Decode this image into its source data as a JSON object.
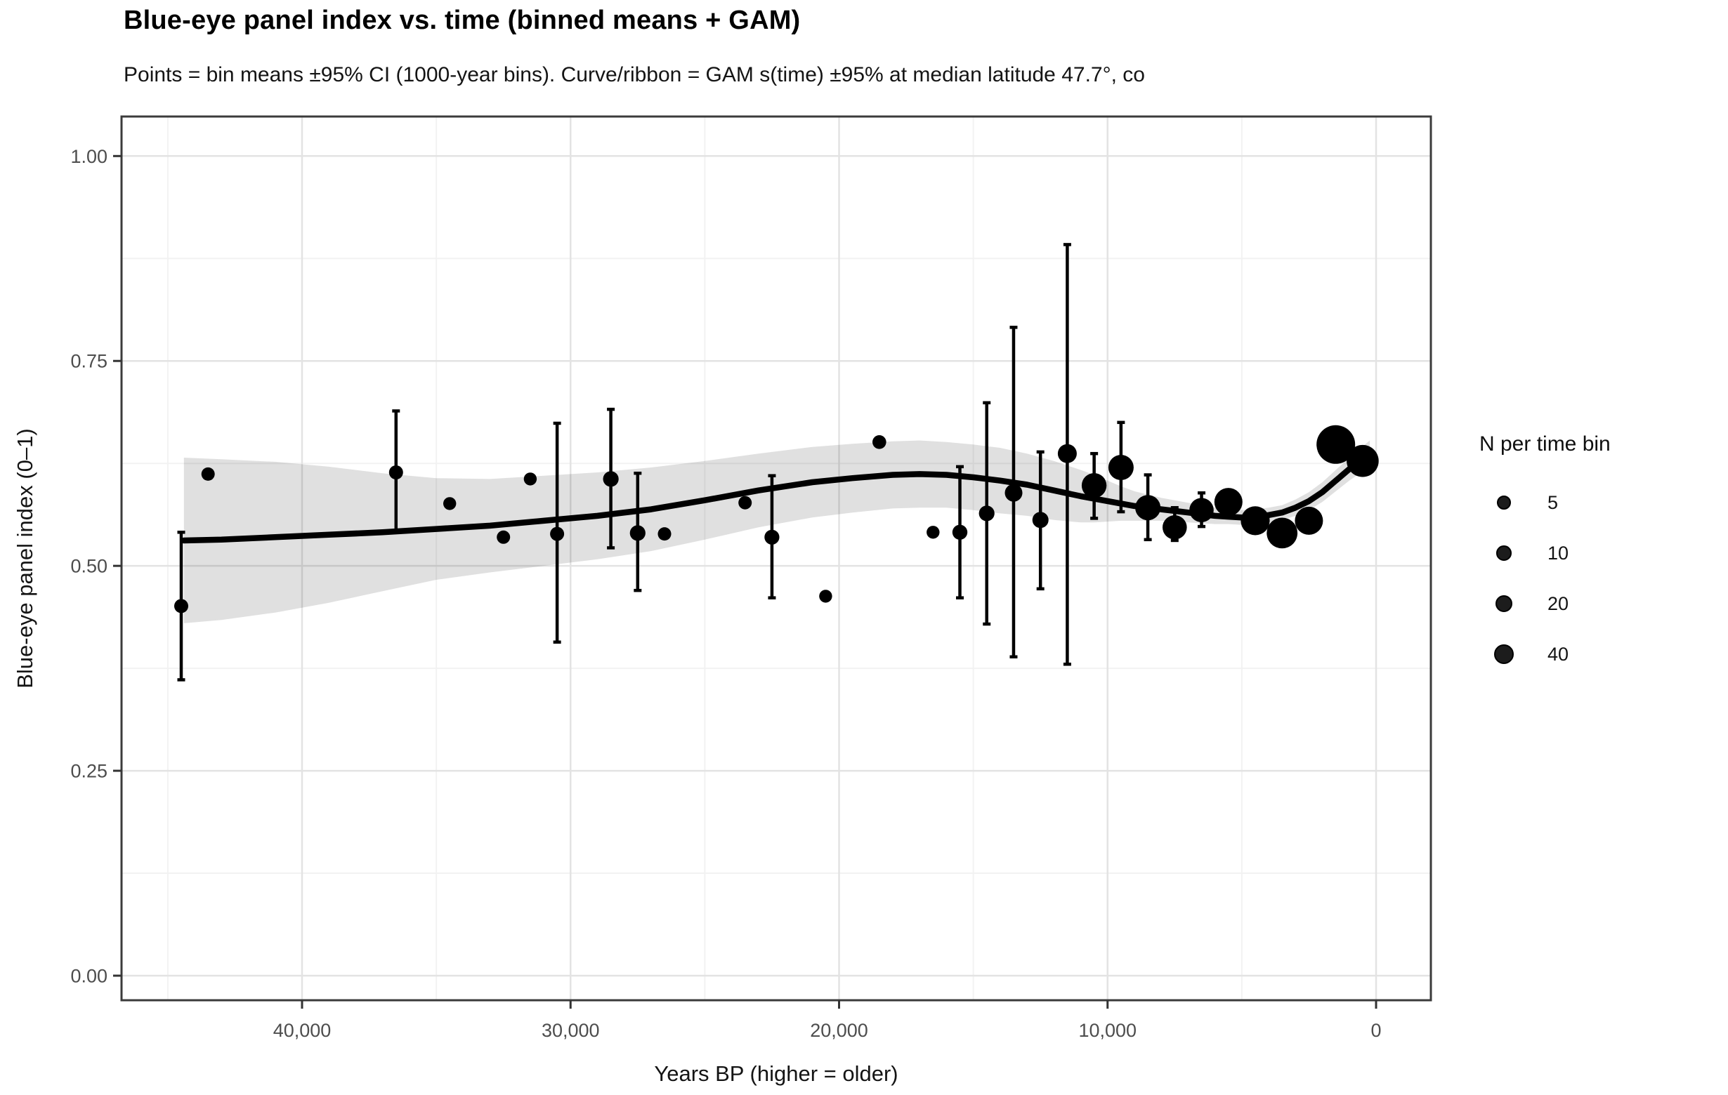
{
  "header": {
    "title": "Blue-eye panel index vs. time (binned means + GAM)",
    "subtitle": "Points = bin means ±95% CI (1000-year bins). Curve/ribbon = GAM s(time) ±95% at median latitude 47.7°, co"
  },
  "axes": {
    "x": {
      "title": "Years BP (higher = older)",
      "reversed": true,
      "major_ticks": [
        {
          "value": 40000,
          "label": "40,000"
        },
        {
          "value": 30000,
          "label": "30,000"
        },
        {
          "value": 20000,
          "label": "20,000"
        },
        {
          "value": 10000,
          "label": "10,000"
        },
        {
          "value": 0,
          "label": "0"
        }
      ],
      "minor_gridlines": [
        45000,
        35000,
        25000,
        15000,
        5000
      ]
    },
    "y": {
      "title": "Blue-eye panel index (0–1)",
      "major_ticks": [
        {
          "value": 1.0,
          "label": "1.00"
        },
        {
          "value": 0.75,
          "label": "0.75"
        },
        {
          "value": 0.5,
          "label": "0.50"
        },
        {
          "value": 0.25,
          "label": "0.25"
        },
        {
          "value": 0.0,
          "label": "0.00"
        }
      ],
      "minor_gridlines": [
        0.875,
        0.625,
        0.375,
        0.125
      ]
    }
  },
  "legend": {
    "title": "N per time bin",
    "items": [
      {
        "n": 5,
        "label": "5"
      },
      {
        "n": 10,
        "label": "10"
      },
      {
        "n": 20,
        "label": "20"
      },
      {
        "n": 40,
        "label": "40"
      }
    ],
    "size_scale": {
      "radius_intercept_px": 7.81,
      "radius_per_sqrt_n_px": 0.978
    }
  },
  "colors": {
    "point": "#000000",
    "error_bar": "#000000",
    "gam_curve": "#000000",
    "ribbon_fill": "#000000",
    "ribbon_opacity": 0.12,
    "grid_major": "#e3e3e3",
    "grid_minor": "#f2f2f2",
    "panel_border": "#3b3b3b",
    "axis_tick": "#333333",
    "axis_text": "#4d4d4d",
    "text": "#141414",
    "background": "#ffffff"
  },
  "chart_data": {
    "type": "scatter",
    "title": "Blue-eye panel index vs. time (binned means + GAM)",
    "xlabel": "Years BP (higher = older)",
    "ylabel": "Blue-eye panel index (0–1)",
    "xlim": [
      46700,
      -2050
    ],
    "ylim": [
      -0.03,
      1.048
    ],
    "grid": true,
    "legend_position": "right",
    "bin_width_years": 1000,
    "points": [
      {
        "year_bp": 44500,
        "mean": 0.451,
        "ci_low": 0.361,
        "ci_high": 0.541,
        "n": 5
      },
      {
        "year_bp": 43500,
        "mean": 0.612,
        "ci_low": null,
        "ci_high": null,
        "n": 3
      },
      {
        "year_bp": 36500,
        "mean": 0.614,
        "ci_low": 0.542,
        "ci_high": 0.689,
        "n": 5
      },
      {
        "year_bp": 34500,
        "mean": 0.576,
        "ci_low": null,
        "ci_high": null,
        "n": 2
      },
      {
        "year_bp": 32500,
        "mean": 0.535,
        "ci_low": null,
        "ci_high": null,
        "n": 3
      },
      {
        "year_bp": 31500,
        "mean": 0.606,
        "ci_low": null,
        "ci_high": null,
        "n": 2
      },
      {
        "year_bp": 30500,
        "mean": 0.539,
        "ci_low": 0.407,
        "ci_high": 0.674,
        "n": 5
      },
      {
        "year_bp": 28500,
        "mean": 0.606,
        "ci_low": 0.522,
        "ci_high": 0.691,
        "n": 11
      },
      {
        "year_bp": 27500,
        "mean": 0.54,
        "ci_low": 0.47,
        "ci_high": 0.613,
        "n": 11
      },
      {
        "year_bp": 26500,
        "mean": 0.539,
        "ci_low": null,
        "ci_high": null,
        "n": 3
      },
      {
        "year_bp": 23500,
        "mean": 0.577,
        "ci_low": null,
        "ci_high": null,
        "n": 3
      },
      {
        "year_bp": 22500,
        "mean": 0.535,
        "ci_low": 0.461,
        "ci_high": 0.61,
        "n": 8
      },
      {
        "year_bp": 20500,
        "mean": 0.463,
        "ci_low": null,
        "ci_high": null,
        "n": 2
      },
      {
        "year_bp": 18500,
        "mean": 0.651,
        "ci_low": null,
        "ci_high": null,
        "n": 4
      },
      {
        "year_bp": 16500,
        "mean": 0.541,
        "ci_low": null,
        "ci_high": null,
        "n": 2
      },
      {
        "year_bp": 15500,
        "mean": 0.541,
        "ci_low": 0.461,
        "ci_high": 0.621,
        "n": 9
      },
      {
        "year_bp": 14500,
        "mean": 0.564,
        "ci_low": 0.429,
        "ci_high": 0.699,
        "n": 11
      },
      {
        "year_bp": 13500,
        "mean": 0.589,
        "ci_low": 0.389,
        "ci_high": 0.791,
        "n": 23
      },
      {
        "year_bp": 12500,
        "mean": 0.556,
        "ci_low": 0.472,
        "ci_high": 0.639,
        "n": 14
      },
      {
        "year_bp": 11500,
        "mean": 0.637,
        "ci_low": 0.38,
        "ci_high": 0.892,
        "n": 34
      },
      {
        "year_bp": 10500,
        "mean": 0.598,
        "ci_low": 0.558,
        "ci_high": 0.637,
        "n": 102
      },
      {
        "year_bp": 9500,
        "mean": 0.62,
        "ci_low": 0.566,
        "ci_high": 0.675,
        "n": 108
      },
      {
        "year_bp": 8500,
        "mean": 0.571,
        "ci_low": 0.532,
        "ci_high": 0.611,
        "n": 108
      },
      {
        "year_bp": 7500,
        "mean": 0.547,
        "ci_low": 0.531,
        "ci_high": 0.571,
        "n": 94
      },
      {
        "year_bp": 6500,
        "mean": 0.568,
        "ci_low": 0.548,
        "ci_high": 0.589,
        "n": 94
      },
      {
        "year_bp": 5500,
        "mean": 0.578,
        "ci_low": null,
        "ci_high": null,
        "n": 155
      },
      {
        "year_bp": 4500,
        "mean": 0.555,
        "ci_low": null,
        "ci_high": null,
        "n": 171
      },
      {
        "year_bp": 3500,
        "mean": 0.54,
        "ci_low": null,
        "ci_high": null,
        "n": 208
      },
      {
        "year_bp": 2500,
        "mean": 0.555,
        "ci_low": null,
        "ci_high": null,
        "n": 155
      },
      {
        "year_bp": 1500,
        "mean": 0.648,
        "ci_low": null,
        "ci_high": null,
        "n": 405
      },
      {
        "year_bp": 500,
        "mean": 0.628,
        "ci_low": null,
        "ci_high": null,
        "n": 235
      }
    ],
    "gam": {
      "x_years_bp": [
        44400,
        43000,
        41000,
        39000,
        37000,
        35000,
        33000,
        31000,
        29000,
        27000,
        25000,
        23000,
        21000,
        19500,
        18000,
        17000,
        16000,
        15000,
        14000,
        13000,
        12000,
        11000,
        10500,
        10000,
        9500,
        9000,
        8500,
        8000,
        7500,
        7000,
        6500,
        6000,
        5500,
        5000,
        4500,
        4000,
        3500,
        3000,
        2500,
        2000,
        1500,
        1000,
        600,
        235
      ],
      "fit": [
        0.531,
        0.532,
        0.535,
        0.538,
        0.541,
        0.545,
        0.549,
        0.555,
        0.561,
        0.569,
        0.58,
        0.592,
        0.602,
        0.607,
        0.611,
        0.612,
        0.611,
        0.608,
        0.604,
        0.599,
        0.592,
        0.585,
        0.582,
        0.579,
        0.576,
        0.573,
        0.571,
        0.569,
        0.567,
        0.565,
        0.563,
        0.561,
        0.56,
        0.559,
        0.56,
        0.562,
        0.565,
        0.571,
        0.579,
        0.59,
        0.604,
        0.618,
        0.628,
        0.637
      ],
      "ci_half_width": [
        0.101,
        0.098,
        0.092,
        0.083,
        0.072,
        0.062,
        0.057,
        0.055,
        0.053,
        0.051,
        0.048,
        0.045,
        0.043,
        0.042,
        0.041,
        0.041,
        0.04,
        0.04,
        0.04,
        0.038,
        0.036,
        0.032,
        0.029,
        0.025,
        0.021,
        0.018,
        0.016,
        0.014,
        0.013,
        0.012,
        0.011,
        0.01,
        0.009,
        0.009,
        0.009,
        0.009,
        0.009,
        0.01,
        0.011,
        0.012,
        0.013,
        0.014,
        0.015,
        0.016
      ]
    }
  }
}
